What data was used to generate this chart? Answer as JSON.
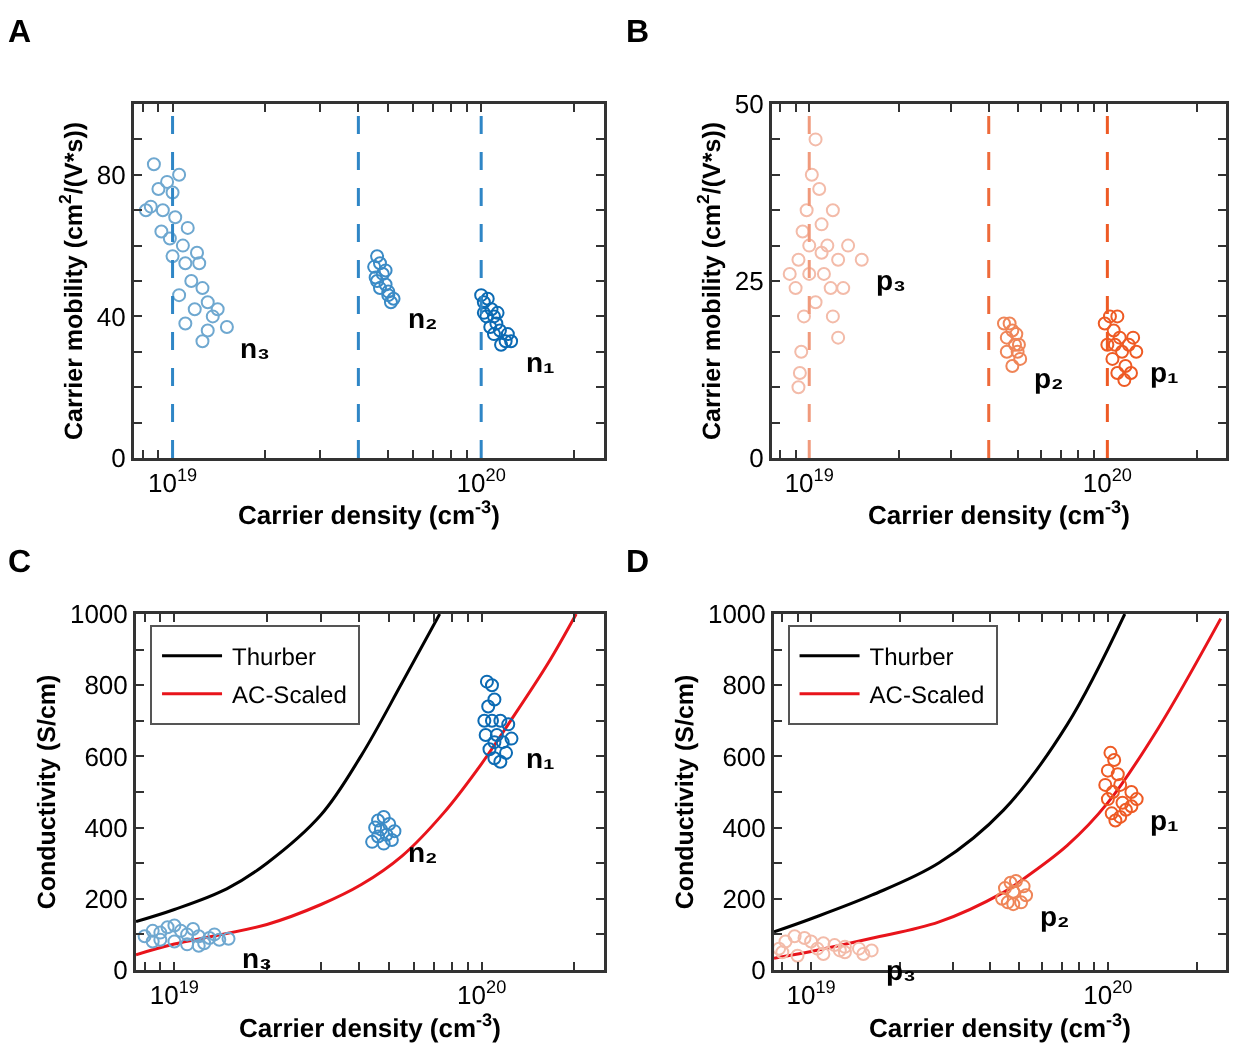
{
  "chart_data": [
    {
      "type": "scatter",
      "title": "A",
      "xlabel": "Carrier density (cm$^{-3}$)",
      "ylabel": "Carrier mobility (cm$^{2}$/(V*s))",
      "log": "x",
      "marker": "circle",
      "xlim": [
        7.5e+18,
        2.5e+20
      ],
      "xticks": [
        {
          "value": 8e+18,
          "label": null
        },
        {
          "value": 9e+18,
          "label": null
        },
        {
          "value": 1e+19,
          "label": "10$^{19}$"
        },
        {
          "value": 2e+19,
          "label": null
        },
        {
          "value": 3e+19,
          "label": null
        },
        {
          "value": 4e+19,
          "label": null
        },
        {
          "value": 5e+19,
          "label": null
        },
        {
          "value": 6e+19,
          "label": null
        },
        {
          "value": 7e+19,
          "label": null
        },
        {
          "value": 8e+19,
          "label": null
        },
        {
          "value": 9e+19,
          "label": null
        },
        {
          "value": 1e+20,
          "label": "10$^{20}$"
        },
        {
          "value": 2e+20,
          "label": null
        }
      ],
      "ylim": [
        0,
        100
      ],
      "yticks": [
        0,
        {
          "value": 10,
          "label": null
        },
        {
          "value": 20,
          "label": null
        },
        {
          "value": 30,
          "label": null
        },
        40,
        {
          "value": 50,
          "label": null
        },
        {
          "value": 60,
          "label": null
        },
        {
          "value": 70,
          "label": null
        },
        80,
        {
          "value": 90,
          "label": null
        },
        {
          "value": 100,
          "label": null
        }
      ],
      "ref_lines": [
        {
          "axis": "x",
          "value": 1e+19,
          "color": "#2f86c6",
          "line_style": "dashed"
        },
        {
          "axis": "x",
          "value": 4e+19,
          "color": "#2f86c6",
          "line_style": "dashed"
        },
        {
          "axis": "x",
          "value": 1e+20,
          "color": "#2f86c6",
          "line_style": "dashed"
        }
      ],
      "series": [
        {
          "name": "n₃",
          "color": "#6fa8d0",
          "x": [
            8.5e+18,
            8.7e+18,
            9e+18,
            9.3e+18,
            9.6e+18,
            1e+19,
            1.05e+19,
            9.2e+18,
            9.8e+18,
            1.02e+19,
            1.08e+19,
            1.1e+19,
            1.15e+19,
            1.2e+19,
            1.25e+19,
            1.3e+19,
            1.35e+19,
            1.3e+19,
            1.25e+19,
            1.4e+19,
            1.5e+19,
            1.18e+19,
            1.1e+19,
            1e+19,
            8.2e+18,
            1.12e+19,
            1.22e+19,
            1.05e+19
          ],
          "values": [
            71,
            83,
            76,
            70,
            78,
            75,
            80,
            64,
            62,
            68,
            60,
            55,
            50,
            58,
            48,
            44,
            40,
            36,
            33,
            42,
            37,
            42,
            38,
            57,
            70,
            65,
            55,
            46
          ]
        },
        {
          "name": "n₂",
          "color": "#3b8bc6",
          "x": [
            4.6e+19,
            4.5e+19,
            4.7e+19,
            4.6e+19,
            4.8e+19,
            4.9e+19,
            5e+19,
            5.2e+19,
            5.1e+19,
            4.7e+19,
            4.55e+19,
            4.9e+19,
            5e+19
          ],
          "values": [
            57,
            54,
            55,
            50,
            52,
            49,
            47,
            45,
            44,
            48,
            51,
            53,
            46
          ]
        },
        {
          "name": "n₁",
          "color": "#0b6ab3",
          "x": [
            1e+20,
            1.02e+20,
            1.05e+20,
            1.08e+20,
            1.1e+20,
            1.04e+20,
            1.12e+20,
            1.15e+20,
            1.18e+20,
            1.2e+20,
            1.25e+20,
            1.22e+20,
            1.07e+20,
            1.13e+20,
            1.1e+20,
            1.02e+20,
            1.16e+20
          ],
          "values": [
            46,
            44,
            45,
            42,
            40,
            40,
            38,
            36,
            null,
            33,
            33,
            35,
            37,
            41,
            35,
            41,
            32
          ]
        }
      ]
    },
    {
      "type": "scatter",
      "title": "B",
      "xlabel": "Carrier density (cm$^{-3}$)",
      "ylabel": "Carrier mobility (cm$^{2}$/(V*s))",
      "log": "x",
      "marker": "circle",
      "xlim": [
        7.5e+18,
        2.5e+20
      ],
      "xticks": [
        {
          "value": 8e+18,
          "label": null
        },
        {
          "value": 9e+18,
          "label": null
        },
        {
          "value": 1e+19,
          "label": "10$^{19}$"
        },
        {
          "value": 2e+19,
          "label": null
        },
        {
          "value": 3e+19,
          "label": null
        },
        {
          "value": 4e+19,
          "label": null
        },
        {
          "value": 5e+19,
          "label": null
        },
        {
          "value": 6e+19,
          "label": null
        },
        {
          "value": 7e+19,
          "label": null
        },
        {
          "value": 8e+19,
          "label": null
        },
        {
          "value": 9e+19,
          "label": null
        },
        {
          "value": 1e+20,
          "label": "10$^{20}$"
        },
        {
          "value": 2e+20,
          "label": null
        }
      ],
      "ylim": [
        0,
        50
      ],
      "yticks": [
        0,
        {
          "value": 5,
          "label": null
        },
        {
          "value": 10,
          "label": null
        },
        {
          "value": 15,
          "label": null
        },
        {
          "value": 20,
          "label": null
        },
        25,
        {
          "value": 30,
          "label": null
        },
        {
          "value": 35,
          "label": null
        },
        {
          "value": 40,
          "label": null
        },
        {
          "value": 45,
          "label": null
        },
        50
      ],
      "ref_lines": [
        {
          "axis": "x",
          "value": 1e+19,
          "color": "#f09a7c",
          "line_style": "dashed"
        },
        {
          "axis": "x",
          "value": 4e+19,
          "color": "#ee6a3a",
          "line_style": "dashed"
        },
        {
          "axis": "x",
          "value": 1e+20,
          "color": "#ee5a24",
          "line_style": "dashed"
        }
      ],
      "series": [
        {
          "name": "p₃",
          "color": "#f3bba9",
          "x": [
            9e+18,
            9.2e+18,
            9.5e+18,
            9.8e+18,
            1e+19,
            1.02e+19,
            1.05e+19,
            1.08e+19,
            1.1e+19,
            1.05e+19,
            1.12e+19,
            1.15e+19,
            1.2e+19,
            1.25e+19,
            1.3e+19,
            1.35e+19,
            1.5e+19,
            1.2e+19,
            1.25e+19,
            9.6e+18,
            9.4e+18,
            9.3e+18,
            9.2e+18,
            1e+19,
            1.1e+19,
            1.18e+19,
            8.6e+18
          ],
          "values": [
            24,
            28,
            32,
            35,
            30,
            40,
            45,
            38,
            33,
            22,
            26,
            30,
            35,
            28,
            24,
            30,
            28,
            20,
            17,
            20,
            15,
            12,
            10,
            26,
            29,
            24,
            26
          ]
        },
        {
          "name": "p₂",
          "color": "#ef8558",
          "x": [
            4.5e+19,
            4.7e+19,
            4.6e+19,
            4.8e+19,
            4.9e+19,
            5e+19,
            5.1e+19,
            4.8e+19,
            4.6e+19,
            4.95e+19,
            5.05e+19
          ],
          "values": [
            19,
            19,
            17,
            18,
            16,
            15,
            14,
            13,
            15,
            17.5,
            16
          ]
        },
        {
          "name": "p₁",
          "color": "#ee5a24",
          "x": [
            9.8e+19,
            1.02e+20,
            1.05e+20,
            1.08e+20,
            1.1e+20,
            1e+20,
            1.04e+20,
            1.12e+20,
            1.15e+20,
            1.2e+20,
            1.25e+20,
            1.22e+20,
            1.08e+20,
            1.14e+20,
            1.18e+20,
            1.06e+20
          ],
          "values": [
            19,
            20,
            18,
            20,
            17,
            16,
            14,
            15,
            13,
            12,
            15,
            17,
            12,
            11,
            16,
            16
          ]
        }
      ]
    },
    {
      "type": "scatter",
      "title": "C",
      "xlabel": "Carrier density (cm$^{-3}$)",
      "ylabel": "Conductivity (S/cm)",
      "log": "x",
      "legend": "top left",
      "xlim": [
        7.5e+18,
        2.5e+20
      ],
      "xticks": [
        {
          "value": 8e+18,
          "label": null
        },
        {
          "value": 9e+18,
          "label": null
        },
        {
          "value": 1e+19,
          "label": "10$^{19}$"
        },
        {
          "value": 2e+19,
          "label": null
        },
        {
          "value": 3e+19,
          "label": null
        },
        {
          "value": 4e+19,
          "label": null
        },
        {
          "value": 5e+19,
          "label": null
        },
        {
          "value": 6e+19,
          "label": null
        },
        {
          "value": 7e+19,
          "label": null
        },
        {
          "value": 8e+19,
          "label": null
        },
        {
          "value": 9e+19,
          "label": null
        },
        {
          "value": 1e+20,
          "label": "10$^{20}$"
        },
        {
          "value": 2e+20,
          "label": null
        }
      ],
      "ylim": [
        0,
        1000
      ],
      "yticks": [
        0,
        {
          "value": 100,
          "label": null
        },
        200,
        {
          "value": 300,
          "label": null
        },
        400,
        {
          "value": 500,
          "label": null
        },
        600,
        {
          "value": 700,
          "label": null
        },
        800,
        {
          "value": 900,
          "label": null
        },
        1000
      ],
      "series": [
        {
          "type": "line",
          "name": "Thurber",
          "color": "#000000",
          "x": [
            7.5e+18,
            1e+19,
            1.48e+19,
            2e+19,
            3e+19,
            4.06e+19,
            5.5e+19,
            7.3e+19
          ],
          "values": [
            136,
            170,
            228,
            300,
            436,
            603,
            806,
            1000
          ]
        },
        {
          "type": "line",
          "name": "AC-Scaled",
          "color": "#e8141b",
          "x": [
            7.5e+18,
            1e+19,
            2e+19,
            3e+19,
            4.06e+19,
            5.5e+19,
            7.5e+19,
            1e+20,
            1.22e+20,
            1.64e+20,
            2.03e+20
          ],
          "values": [
            43,
            73,
            128,
            184,
            240,
            320,
            440,
            580,
            690,
            860,
            1000
          ]
        },
        {
          "name": "n₃",
          "marker": "circle",
          "color": "#6fa8d0",
          "x": [
            8e+18,
            8.5e+18,
            9e+18,
            9.5e+18,
            1e+19,
            1.05e+19,
            1.1e+19,
            1.2e+19,
            1.3e+19,
            1.4e+19,
            1.5e+19,
            1.25e+19,
            1.1e+19,
            1e+19,
            9e+18,
            8.5e+18,
            1.15e+19,
            1.35e+19,
            1.2e+19
          ],
          "values": [
            95,
            110,
            105,
            120,
            125,
            110,
            100,
            95,
            90,
            85,
            88,
            75,
            72,
            80,
            85,
            80,
            115,
            100,
            68
          ]
        },
        {
          "name": "n₂",
          "marker": "circle",
          "color": "#3b8bc6",
          "x": [
            4.4e+19,
            4.5e+19,
            4.6e+19,
            4.8e+19,
            5e+19,
            5.2e+19,
            5.1e+19,
            4.8e+19,
            4.6e+19,
            4.7e+19,
            4.9e+19
          ],
          "values": [
            360,
            400,
            420,
            430,
            410,
            390,
            365,
            355,
            375,
            395,
            380
          ]
        },
        {
          "name": "n₁",
          "marker": "circle",
          "color": "#0b6ab3",
          "x": [
            1.04e+20,
            1.08e+20,
            1.1e+20,
            1.05e+20,
            1.02e+20,
            1.03e+20,
            1.06e+20,
            1.1e+20,
            1.15e+20,
            1.2e+20,
            1.25e+20,
            1.22e+20,
            1.15e+20,
            1.12e+20,
            1.08e+20,
            1.1e+20,
            1.17e+20
          ],
          "values": [
            810,
            800,
            760,
            740,
            700,
            660,
            620,
            595,
            585,
            610,
            650,
            690,
            700,
            660,
            700,
            640,
            640
          ]
        }
      ]
    },
    {
      "type": "scatter",
      "title": "D",
      "xlabel": "Carrier density (cm$^{-3}$)",
      "ylabel": "Conductivity (S/cm)",
      "log": "x",
      "legend": "top left",
      "xlim": [
        7.5e+18,
        2.5e+20
      ],
      "xticks": [
        {
          "value": 8e+18,
          "label": null
        },
        {
          "value": 9e+18,
          "label": null
        },
        {
          "value": 1e+19,
          "label": "10$^{19}$"
        },
        {
          "value": 2e+19,
          "label": null
        },
        {
          "value": 3e+19,
          "label": null
        },
        {
          "value": 4e+19,
          "label": null
        },
        {
          "value": 5e+19,
          "label": null
        },
        {
          "value": 6e+19,
          "label": null
        },
        {
          "value": 7e+19,
          "label": null
        },
        {
          "value": 8e+19,
          "label": null
        },
        {
          "value": 9e+19,
          "label": null
        },
        {
          "value": 1e+20,
          "label": "10$^{20}$"
        },
        {
          "value": 2e+20,
          "label": null
        }
      ],
      "ylim": [
        0,
        1000
      ],
      "yticks": [
        0,
        {
          "value": 100,
          "label": null
        },
        200,
        {
          "value": 300,
          "label": null
        },
        400,
        {
          "value": 500,
          "label": null
        },
        600,
        {
          "value": 700,
          "label": null
        },
        800,
        {
          "value": 900,
          "label": null
        },
        1000
      ],
      "series": [
        {
          "type": "line",
          "name": "Thurber",
          "color": "#000000",
          "x": [
            7.5e+18,
            1e+19,
            1.6e+19,
            2.7e+19,
            4.45e+19,
            7.3e+19,
            1.14e+20
          ],
          "values": [
            107,
            144,
            210,
            301,
            449,
            690,
            1000
          ]
        },
        {
          "type": "line",
          "name": "AC-Scaled",
          "color": "#e8141b",
          "x": [
            7.5e+18,
            1e+19,
            1.6e+19,
            2.7e+19,
            4.45e+19,
            5e+19,
            7.3e+19,
            1e+20,
            1.48e+20,
            2.4e+20
          ],
          "values": [
            33,
            52,
            89,
            135,
            218,
            246,
            350,
            470,
            680,
            987
          ]
        },
        {
          "name": "p₃",
          "marker": "circle",
          "color": "#f3bba9",
          "x": [
            7.8e+18,
            8.2e+18,
            8.8e+18,
            9.5e+18,
            1e+19,
            1.1e+19,
            1.2e+19,
            1.3e+19,
            1.45e+19,
            1.6e+19,
            1.5e+19,
            1.3e+19,
            1.1e+19,
            9e+18,
            8e+18,
            1.05e+19,
            1.25e+19
          ],
          "values": [
            60,
            80,
            95,
            90,
            80,
            75,
            70,
            65,
            60,
            55,
            45,
            50,
            45,
            40,
            50,
            60,
            55
          ]
        },
        {
          "name": "p₂",
          "marker": "circle",
          "color": "#ef8558",
          "x": [
            4.4e+19,
            4.5e+19,
            4.7e+19,
            4.9e+19,
            5.2e+19,
            5.3e+19,
            5.1e+19,
            4.8e+19,
            4.6e+19,
            4.8e+19
          ],
          "values": [
            200,
            230,
            245,
            250,
            235,
            210,
            190,
            185,
            190,
            220
          ]
        },
        {
          "name": "p₁",
          "marker": "circle",
          "color": "#ee5a24",
          "x": [
            1.02e+20,
            1.05e+20,
            1e+20,
            9.8e+19,
            1e+20,
            1.03e+20,
            1.06e+20,
            1.1e+20,
            1.15e+20,
            1.2e+20,
            1.25e+20,
            1.2e+20,
            1.1e+20,
            1.08e+20,
            1.04e+20,
            1.12e+20
          ],
          "values": [
            610,
            590,
            560,
            520,
            480,
            440,
            420,
            430,
            450,
            460,
            480,
            500,
            520,
            550,
            500,
            470
          ]
        }
      ]
    }
  ]
}
